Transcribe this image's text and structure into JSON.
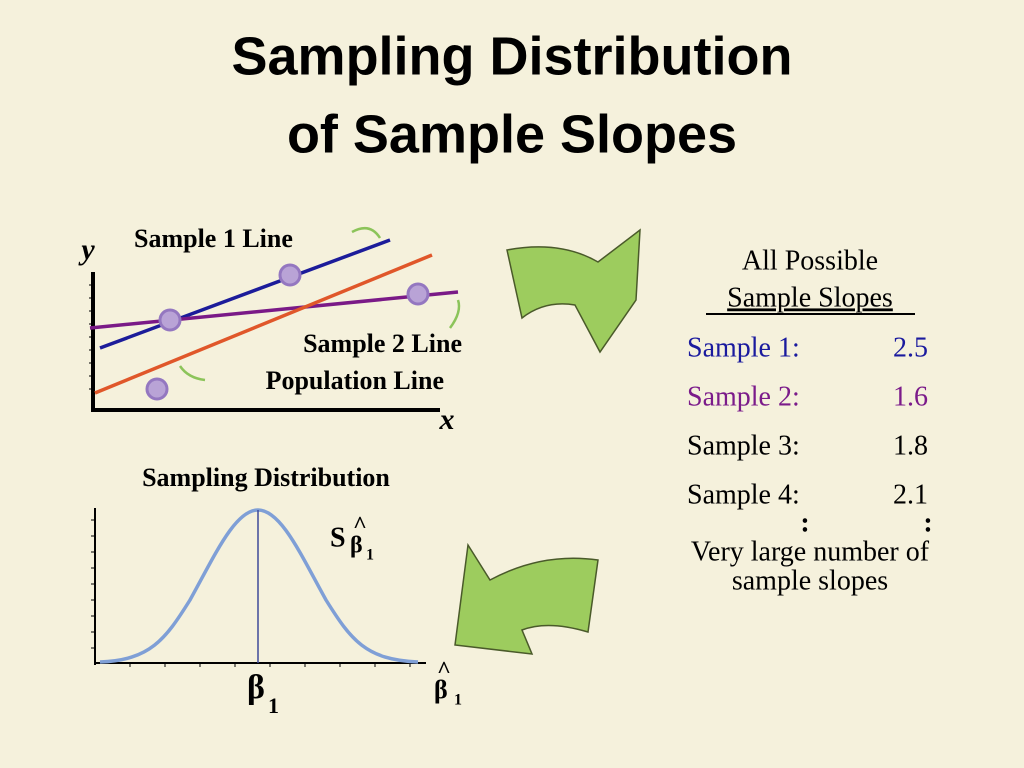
{
  "title": [
    "Sampling Distribution",
    "of Sample Slopes"
  ],
  "scatter": {
    "y_label": "y",
    "x_label": "x",
    "line_labels": [
      "Sample 1 Line",
      "Sample 2 Line",
      "Population Line"
    ]
  },
  "distribution": {
    "title": "Sampling Distribution",
    "se_label": {
      "s": "S",
      "hat": "^",
      "beta": "β",
      "sub": "1"
    },
    "center_label": {
      "beta": "β",
      "sub": "1"
    },
    "axis_label": {
      "hat": "^",
      "beta": "β",
      "sub": "1"
    }
  },
  "slopes": {
    "header": [
      "All Possible",
      "Sample Slopes"
    ],
    "rows": [
      [
        "Sample 1:",
        "2.5"
      ],
      [
        "Sample 2:",
        "1.6"
      ],
      [
        "Sample 3:",
        "1.8"
      ],
      [
        "Sample 4:",
        "2.1"
      ]
    ],
    "ellipsis": [
      ":",
      ":"
    ],
    "footer": [
      "Very large number of",
      "sample slopes"
    ]
  }
}
